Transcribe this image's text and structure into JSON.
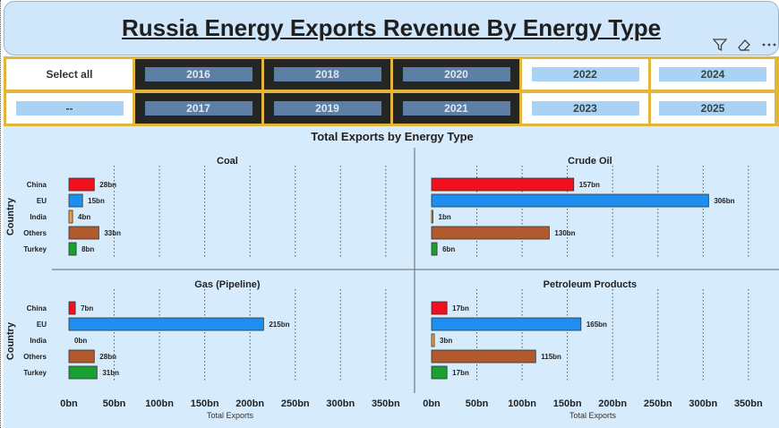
{
  "header": {
    "title": "Russia Energy Exports Revenue By Energy Type",
    "icons": [
      "filter-icon",
      "eraser-icon",
      "more-options-icon"
    ]
  },
  "slicer": {
    "select_all": "Select all",
    "blank": "--",
    "years": [
      "2016",
      "2017",
      "2018",
      "2019",
      "2020",
      "2021",
      "2022",
      "2023",
      "2024",
      "2025"
    ],
    "selected": [
      "2016",
      "2017",
      "2018",
      "2019",
      "2020",
      "2021"
    ]
  },
  "chart_data": {
    "type": "bar",
    "orientation": "horizontal",
    "title": "Total Exports by Energy Type",
    "xlabel": "Total Exports",
    "ylabel": "Country",
    "categories": [
      "China",
      "EU",
      "India",
      "Others",
      "Turkey"
    ],
    "category_colors": [
      "#f0101e",
      "#1e8ff0",
      "#f0a040",
      "#b05a2e",
      "#18a030"
    ],
    "xlim": [
      0,
      350
    ],
    "xticks": [
      "0bn",
      "50bn",
      "100bn",
      "150bn",
      "200bn",
      "250bn",
      "300bn",
      "350bn"
    ],
    "grid": "vertical dotted",
    "panels": [
      {
        "name": "Coal",
        "values": [
          28,
          15,
          4,
          33,
          8
        ],
        "labels": [
          "28bn",
          "15bn",
          "4bn",
          "33bn",
          "8bn"
        ]
      },
      {
        "name": "Crude Oil",
        "values": [
          157,
          306,
          1,
          130,
          6
        ],
        "labels": [
          "157bn",
          "306bn",
          "1bn",
          "130bn",
          "6bn"
        ]
      },
      {
        "name": "Gas (Pipeline)",
        "values": [
          7,
          215,
          0,
          28,
          31
        ],
        "labels": [
          "7bn",
          "215bn",
          "0bn",
          "28bn",
          "31bn"
        ]
      },
      {
        "name": "Petroleum Products",
        "values": [
          17,
          165,
          3,
          115,
          17
        ],
        "labels": [
          "17bn",
          "165bn",
          "3bn",
          "115bn",
          "17bn"
        ]
      }
    ]
  }
}
